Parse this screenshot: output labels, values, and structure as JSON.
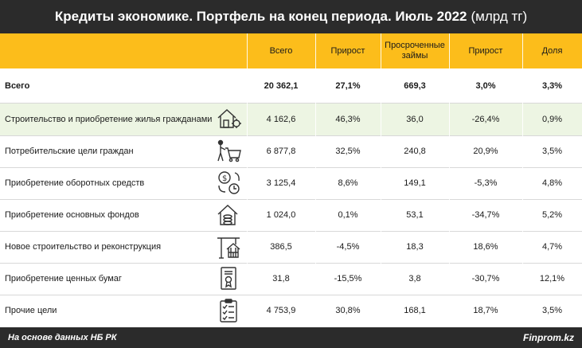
{
  "title": {
    "main": "Кредиты экономике. Портфель на конец периода. Июль 2022",
    "unit": "(млрд тг)"
  },
  "columns": [
    "Всего",
    "Прирост",
    "Просроченные займы",
    "Прирост",
    "Доля"
  ],
  "total": {
    "label": "Всего",
    "values": [
      "20 362,1",
      "27,1%",
      "669,3",
      "3,0%",
      "3,3%"
    ]
  },
  "rows": [
    {
      "label": "Строительство и приобретение жилья гражданами",
      "icon": "house-gear-icon",
      "values": [
        "4 162,6",
        "46,3%",
        "36,0",
        "-26,4%",
        "0,9%"
      ]
    },
    {
      "label": "Потребительские цели граждан",
      "icon": "shopping-cart-person-icon",
      "values": [
        "6 877,8",
        "32,5%",
        "240,8",
        "20,9%",
        "3,5%"
      ]
    },
    {
      "label": "Приобретение оборотных средств",
      "icon": "money-cycle-clock-icon",
      "values": [
        "3 125,4",
        "8,6%",
        "149,1",
        "-5,3%",
        "4,8%"
      ]
    },
    {
      "label": "Приобретение основных фондов",
      "icon": "house-coins-icon",
      "values": [
        "1 024,0",
        "0,1%",
        "53,1",
        "-34,7%",
        "5,2%"
      ]
    },
    {
      "label": "Новое строительство и реконструкция",
      "icon": "construction-crane-icon",
      "values": [
        "386,5",
        "-4,5%",
        "18,3",
        "18,6%",
        "4,7%"
      ]
    },
    {
      "label": "Приобретение ценных бумаг",
      "icon": "certificate-icon",
      "values": [
        "31,8",
        "-15,5%",
        "3,8",
        "-30,7%",
        "12,1%"
      ]
    },
    {
      "label": "Прочие цели",
      "icon": "checklist-icon",
      "values": [
        "4 753,9",
        "30,8%",
        "168,1",
        "18,7%",
        "3,5%"
      ]
    }
  ],
  "footer": {
    "source": "На основе данных НБ РК",
    "brand": "Finprom.kz"
  },
  "colors": {
    "header": "#fcbd1b",
    "dark": "#2b2b2b",
    "highlight_row": "#edf5e3"
  }
}
